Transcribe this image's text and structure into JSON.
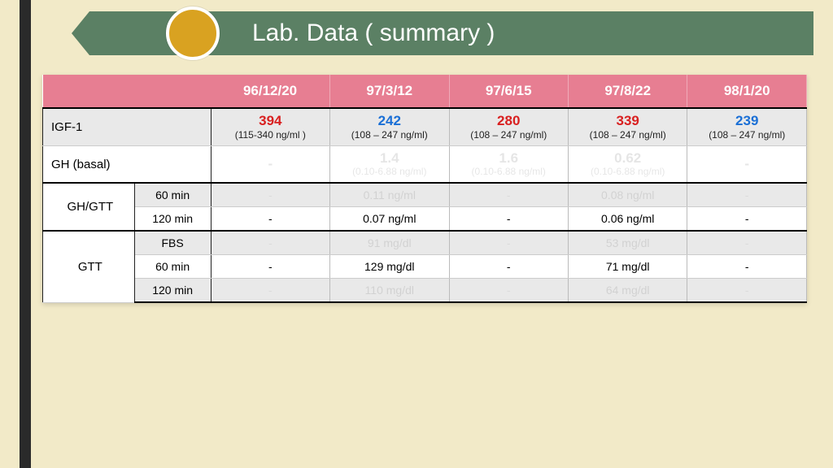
{
  "header": {
    "title": "Lab. Data ( summary )"
  },
  "colors": {
    "page_bg": "#f2eac8",
    "bar": "#5b8064",
    "circle": "#d9a221",
    "pink": "#e77e92",
    "red": "#d92020",
    "blue": "#1a6fd6",
    "shade": "#e9e9e9"
  },
  "dates": [
    "96/12/20",
    "97/3/12",
    "97/6/15",
    "97/8/22",
    "98/1/20"
  ],
  "rows": {
    "igf": {
      "label": "IGF-1",
      "cells": [
        {
          "v": "394",
          "ref": "(115-340 ng/ml )",
          "cls": "red"
        },
        {
          "v": "242",
          "ref": "(108 – 247 ng/ml)",
          "cls": "blue"
        },
        {
          "v": "280",
          "ref": "(108 – 247 ng/ml)",
          "cls": "red"
        },
        {
          "v": "339",
          "ref": "(108 – 247 ng/ml)",
          "cls": "red"
        },
        {
          "v": "239",
          "ref": "(108 – 247 ng/ml)",
          "cls": "blue"
        }
      ]
    },
    "gh_basal": {
      "label": "GH (basal)",
      "cells": [
        {
          "v": "-",
          "faint": true
        },
        {
          "v": "1.4",
          "ref": "(0.10-6.88 ng/ml)",
          "faint": true
        },
        {
          "v": "1.6",
          "ref": "(0.10-6.88 ng/ml)",
          "faint": true
        },
        {
          "v": "0.62",
          "ref": "(0.10-6.88 ng/ml)",
          "faint": true
        },
        {
          "v": "-",
          "faint": true
        }
      ]
    },
    "gh_gtt": {
      "label": "GH/GTT",
      "subs": [
        {
          "label": "60 min",
          "cells": [
            "-",
            "0.11 ng/ml",
            "-",
            "0.08 ng/ml",
            "-"
          ],
          "shade": true,
          "faint": true
        },
        {
          "label": "120 min",
          "cells": [
            "-",
            "0.07 ng/ml",
            "-",
            "0.06 ng/ml",
            "-"
          ],
          "shade": false,
          "faint": false
        }
      ]
    },
    "gtt": {
      "label": "GTT",
      "subs": [
        {
          "label": "FBS",
          "cells": [
            "-",
            "91 mg/dl",
            "-",
            "53 mg/dl",
            "-"
          ],
          "shade": true,
          "faint": true
        },
        {
          "label": "60 min",
          "cells": [
            "-",
            "129 mg/dl",
            "-",
            "71 mg/dl",
            "-"
          ],
          "shade": false,
          "faint": false
        },
        {
          "label": "120 min",
          "cells": [
            "-",
            "110 mg/dl",
            "-",
            "64 mg/dl",
            "-"
          ],
          "shade": true,
          "faint": true
        }
      ]
    }
  }
}
